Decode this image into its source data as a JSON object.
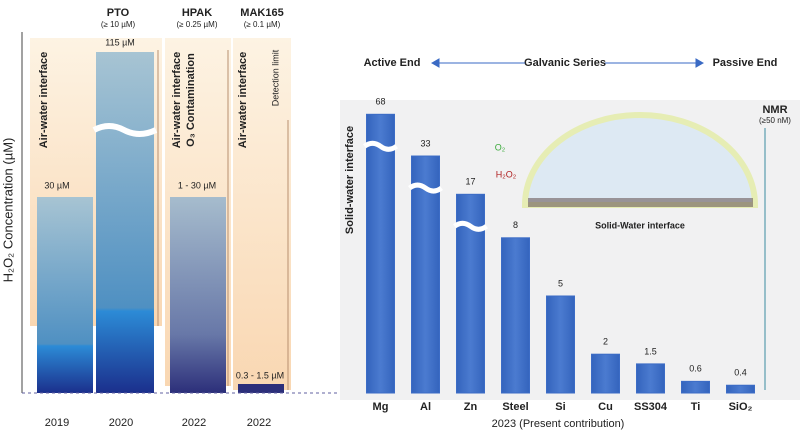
{
  "timeline": {
    "y_label": "H₂O₂ Concentration (µM)",
    "groups": [
      {
        "name": "PTO",
        "limit": "(≥ 10 µM)"
      },
      {
        "name": "HPAK",
        "limit": "(≥ 0.25 µM)"
      },
      {
        "name": "MAK165",
        "limit": "(≥ 0.1 µM)"
      }
    ],
    "interface_labels": [
      "Air-water interface",
      "Air-water interface",
      "O₃ Contamination",
      "Air-water interface",
      "Detection limit"
    ],
    "columns": [
      {
        "label": "30 µM",
        "year": "2019"
      },
      {
        "label": "115 µM",
        "year": "2020"
      },
      {
        "label": "1 - 30 µM",
        "year": "2022"
      },
      {
        "label": "0.3 - 1.5 µM",
        "year": "2022"
      }
    ]
  },
  "series_header": {
    "left": "Active End",
    "center": "Galvanic Series",
    "right": "Passive End"
  },
  "annotations": {
    "side": "Solid-water interface",
    "nmr": "NMR",
    "nmr_limit": "(≥50 nM)",
    "o2": "O₂",
    "h2o2": "H₂O₂",
    "droplet": "Solid-Water interface"
  },
  "chart_data": {
    "type": "bar",
    "x_label": "2023 (Present contribution)",
    "categories": [
      "Mg",
      "Al",
      "Zn",
      "Steel",
      "Si",
      "Cu",
      "SS304",
      "Ti",
      "SiO₂"
    ],
    "values": [
      68,
      33,
      17,
      8,
      5,
      2,
      1.5,
      0.6,
      0.4
    ],
    "color": "#3c6cc6"
  }
}
